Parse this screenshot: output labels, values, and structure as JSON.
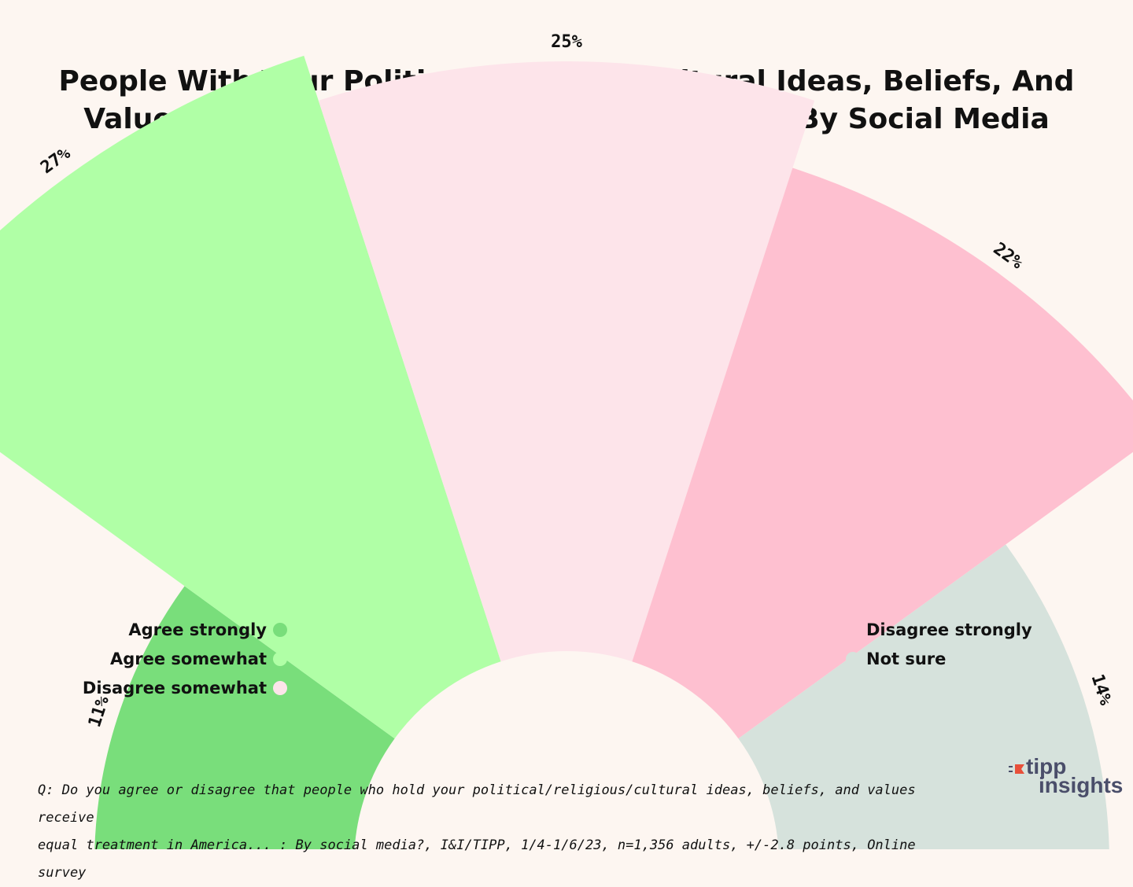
{
  "title": {
    "line1": "People With Your Political/Religious/Cultural Ideas, Beliefs, And",
    "line2": "Values Receive Equal Treatment In America: By Social Media"
  },
  "chart_data": {
    "type": "radial-bar",
    "title": "People With Your Political/Religious/Cultural Ideas, Beliefs, And Values Receive Equal Treatment In America: By Social Media",
    "unit": "%",
    "categories": [
      "Agree strongly",
      "Agree somewhat",
      "Disagree somewhat",
      "Disagree strongly",
      "Not sure"
    ],
    "values": [
      11,
      27,
      25,
      22,
      14
    ],
    "labels": [
      "11%",
      "27%",
      "25%",
      "22%",
      "14%"
    ],
    "colors": [
      "#79de7b",
      "#b0ffa6",
      "#fde4ea",
      "#fec0d0",
      "#d6e2dc"
    ],
    "legend_placement": "bottom-left and bottom-right",
    "grid": false
  },
  "legend": {
    "left": [
      {
        "label": "Agree strongly",
        "color": "#79de7b"
      },
      {
        "label": "Agree somewhat",
        "color": "#b0ffa6"
      },
      {
        "label": "Disagree somewhat",
        "color": "#fde4ea"
      }
    ],
    "right": [
      {
        "label": "Disagree strongly",
        "color": "#fec0d0"
      },
      {
        "label": "Not sure",
        "color": "#d6e2dc"
      }
    ]
  },
  "footnote": {
    "line1": "Q: Do you agree or disagree that people who hold your political/religious/cultural ideas, beliefs, and values receive",
    "line2": "equal treatment in America... : By social media?, I&I/TIPP, 1/4-1/6/23, n=1,356 adults, +/-2.8 points, Online survey"
  },
  "logo": {
    "line1": "tipp",
    "line2": "insights",
    "icon": "tipp-flag-icon",
    "accent": "#e8503a"
  }
}
